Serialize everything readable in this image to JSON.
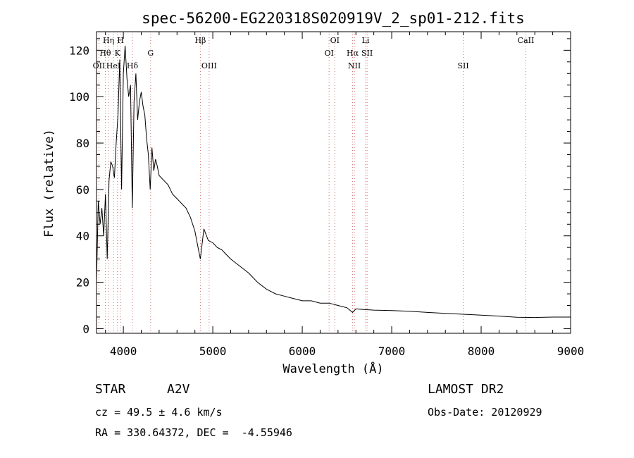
{
  "chart_data": {
    "type": "line",
    "title": "spec-56200-EG220318S020919V_2_sp01-212.fits",
    "xlabel": "Wavelength (Å)",
    "ylabel": "Flux (relative)",
    "xlim": [
      3700,
      9000
    ],
    "ylim": [
      -2,
      128
    ],
    "x_ticks": [
      4000,
      5000,
      6000,
      7000,
      8000,
      9000
    ],
    "y_ticks": [
      0,
      20,
      40,
      60,
      80,
      100,
      120
    ],
    "grid": false,
    "series": [
      {
        "x": [
          3700,
          3720,
          3740,
          3760,
          3780,
          3800,
          3820,
          3840,
          3860,
          3880,
          3900,
          3920,
          3940,
          3960,
          3980,
          4000,
          4020,
          4040,
          4060,
          4080,
          4100,
          4120,
          4140,
          4160,
          4180,
          4200,
          4220,
          4240,
          4260,
          4280,
          4300,
          4320,
          4340,
          4360,
          4380,
          4400,
          4450,
          4500,
          4550,
          4600,
          4650,
          4700,
          4750,
          4800,
          4830,
          4861,
          4900,
          4950,
          5000,
          5050,
          5100,
          5150,
          5200,
          5300,
          5400,
          5500,
          5600,
          5700,
          5800,
          5900,
          6000,
          6100,
          6200,
          6300,
          6400,
          6500,
          6563,
          6600,
          6700,
          6800,
          7000,
          7200,
          7400,
          7600,
          7800,
          8000,
          8200,
          8400,
          8600,
          8800,
          9000
        ],
        "values": [
          20,
          55,
          45,
          52,
          40,
          58,
          30,
          64,
          72,
          70,
          65,
          80,
          92,
          116,
          60,
          110,
          122,
          108,
          100,
          105,
          52,
          98,
          110,
          90,
          98,
          102,
          96,
          92,
          82,
          75,
          60,
          78,
          68,
          73,
          70,
          66,
          64,
          62,
          58,
          56,
          54,
          52,
          48,
          42,
          36,
          30,
          43,
          38,
          37,
          35,
          34,
          32,
          30,
          27,
          24,
          20,
          17,
          15,
          14,
          13,
          12,
          12,
          11,
          11,
          10,
          9,
          7,
          8.5,
          8.2,
          8,
          7.8,
          7.5,
          7,
          6.6,
          6.2,
          5.8,
          5.4,
          4.9,
          4.8,
          5,
          5
        ]
      }
    ],
    "lines": [
      {
        "label": "OII",
        "x": 3727,
        "row": 3
      },
      {
        "label": "Hθ",
        "x": 3798,
        "row": 2
      },
      {
        "label": "Hη",
        "x": 3835,
        "row": 1
      },
      {
        "label": "HeI",
        "x": 3889,
        "row": 3
      },
      {
        "label": "K",
        "x": 3934,
        "row": 2
      },
      {
        "label": "H",
        "x": 3969,
        "row": 1
      },
      {
        "label": "Hδ",
        "x": 4102,
        "row": 3
      },
      {
        "label": "G",
        "x": 4305,
        "row": 2
      },
      {
        "label": "Hβ",
        "x": 4861,
        "row": 1
      },
      {
        "label": "OIII",
        "x": 4959,
        "row": 3
      },
      {
        "label": "OI",
        "x": 6300,
        "row": 2
      },
      {
        "label": "OI",
        "x": 6364,
        "row": 1
      },
      {
        "label": "Hα",
        "x": 6563,
        "row": 2
      },
      {
        "label": "NII",
        "x": 6583,
        "row": 3
      },
      {
        "label": "Li",
        "x": 6708,
        "row": 1
      },
      {
        "label": "SII",
        "x": 6725,
        "row": 2
      },
      {
        "label": "SII",
        "x": 7800,
        "row": 3
      },
      {
        "label": "CaII",
        "x": 8500,
        "row": 1
      }
    ]
  },
  "info": {
    "object_class": "STAR",
    "subclass": "A2V",
    "survey": "LAMOST DR2",
    "cz": "cz = 49.5 ± 4.6 km/s",
    "obs_date": "Obs-Date: 20120929",
    "coords": "RA = 330.64372, DEC =  -4.55946"
  }
}
